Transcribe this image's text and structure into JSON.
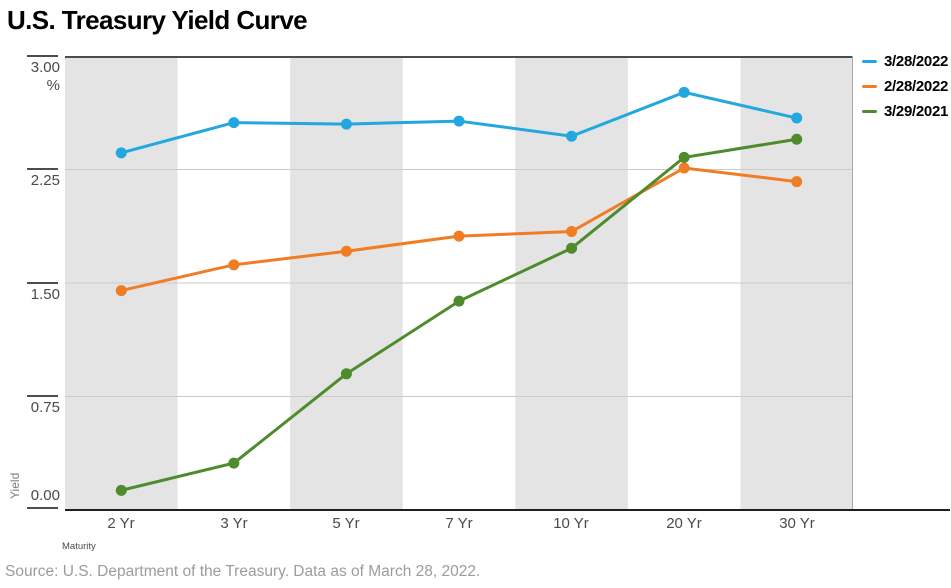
{
  "page": {
    "title": "U.S. Treasury Yield Curve",
    "source_note": "Source: U.S. Department of the Treasury. Data as of March 28, 2022."
  },
  "chart_data": {
    "type": "line",
    "title": "U.S. Treasury Yield Curve",
    "categories": [
      "2 Yr",
      "3 Yr",
      "5 Yr",
      "7 Yr",
      "10 Yr",
      "20 Yr",
      "30 Yr"
    ],
    "series": [
      {
        "name": "3/28/2022",
        "color": "#23a7e0",
        "values": [
          2.36,
          2.56,
          2.55,
          2.57,
          2.47,
          2.76,
          2.59
        ]
      },
      {
        "name": "2/28/2022",
        "color": "#f07c24",
        "values": [
          1.45,
          1.62,
          1.71,
          1.81,
          1.84,
          2.26,
          2.17
        ]
      },
      {
        "name": "3/29/2021",
        "color": "#4f8b2c",
        "values": [
          0.13,
          0.31,
          0.9,
          1.38,
          1.73,
          2.33,
          2.45
        ]
      }
    ],
    "xlabel": "Maturity",
    "ylabel": "Yield",
    "unit": "%",
    "ylim": [
      0,
      3
    ],
    "yticks": [
      0.0,
      0.75,
      1.5,
      2.25,
      3.0
    ],
    "ytick_labels": [
      "0.00",
      "0.75",
      "1.50",
      "2.25",
      "3.00"
    ],
    "grid": "horizontal",
    "background_bands": "alternating vertical gray bands per category",
    "band_color": "#e4e4e4",
    "legend_position": "top-right"
  }
}
